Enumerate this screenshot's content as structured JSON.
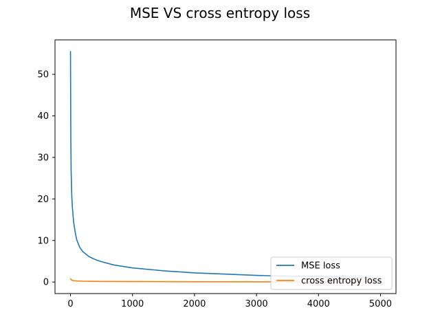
{
  "chart_data": {
    "type": "line",
    "title": "MSE VS cross entropy loss",
    "xlabel": "",
    "ylabel": "",
    "xlim": [
      -250,
      5250
    ],
    "ylim": [
      -2.78,
      58.3
    ],
    "x_ticks": [
      0,
      1000,
      2000,
      3000,
      4000,
      5000
    ],
    "x_tick_labels": [
      "0",
      "1000",
      "2000",
      "3000",
      "4000",
      "5000"
    ],
    "y_ticks": [
      0,
      10,
      20,
      30,
      40,
      50
    ],
    "y_tick_labels": [
      "0",
      "10",
      "20",
      "30",
      "40",
      "50"
    ],
    "grid": false,
    "legend_position": "lower-right",
    "series": [
      {
        "name": "MSE loss",
        "color": "#1f77b4",
        "points": [
          [
            0,
            55.5
          ],
          [
            5,
            35
          ],
          [
            10,
            27
          ],
          [
            20,
            21
          ],
          [
            30,
            18
          ],
          [
            50,
            14.5
          ],
          [
            75,
            12
          ],
          [
            100,
            10.2
          ],
          [
            150,
            8.3
          ],
          [
            200,
            7.3
          ],
          [
            300,
            6.1
          ],
          [
            400,
            5.4
          ],
          [
            500,
            4.9
          ],
          [
            700,
            4.1
          ],
          [
            1000,
            3.4
          ],
          [
            1500,
            2.7
          ],
          [
            2000,
            2.2
          ],
          [
            2500,
            1.9
          ],
          [
            3000,
            1.6
          ],
          [
            3500,
            1.4
          ],
          [
            4000,
            1.3
          ],
          [
            4500,
            1.15
          ],
          [
            5000,
            1.05
          ]
        ]
      },
      {
        "name": "cross entropy loss",
        "color": "#ff7f0e",
        "points": [
          [
            0,
            0.8
          ],
          [
            10,
            0.6
          ],
          [
            20,
            0.45
          ],
          [
            40,
            0.35
          ],
          [
            60,
            0.3
          ],
          [
            100,
            0.25
          ],
          [
            200,
            0.2
          ],
          [
            400,
            0.15
          ],
          [
            700,
            0.12
          ],
          [
            1000,
            0.1
          ],
          [
            2000,
            0.07
          ],
          [
            3000,
            0.05
          ],
          [
            4000,
            0.04
          ],
          [
            5000,
            0.035
          ]
        ]
      }
    ]
  }
}
